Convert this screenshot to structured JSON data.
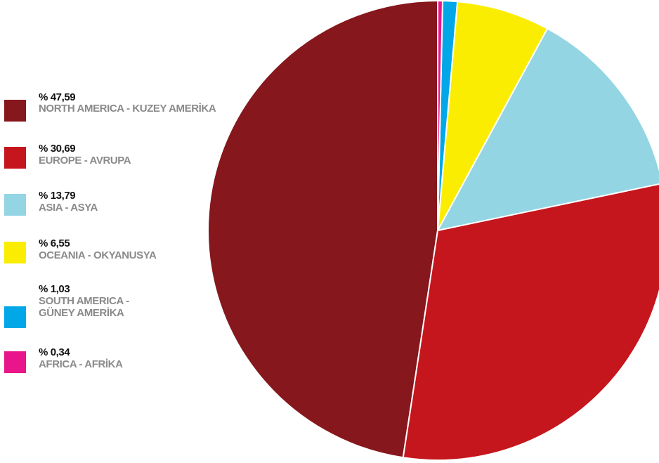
{
  "chart_data": {
    "type": "pie",
    "title": "",
    "slices": [
      {
        "label_line1": "NORTH AMERICA - KUZEY AMERİKA",
        "label_line2": "",
        "value": 47.59,
        "value_text": "% 47,59",
        "color": "#86171c"
      },
      {
        "label_line1": "EUROPE - AVRUPA",
        "label_line2": "",
        "value": 30.69,
        "value_text": "% 30,69",
        "color": "#c5161e"
      },
      {
        "label_line1": "ASIA - ASYA",
        "label_line2": "",
        "value": 13.79,
        "value_text": "% 13,79",
        "color": "#93d5e2"
      },
      {
        "label_line1": "OCEANIA - OKYANUSYA",
        "label_line2": "",
        "value": 6.55,
        "value_text": "% 6,55",
        "color": "#fbed02"
      },
      {
        "label_line1": "SOUTH AMERICA -",
        "label_line2": "GÜNEY AMERİKA",
        "value": 1.03,
        "value_text": "% 1,03",
        "color": "#01a7e7"
      },
      {
        "label_line1": "AFRICA - AFRİKA",
        "label_line2": "",
        "value": 0.34,
        "value_text": "% 0,34",
        "color": "#e8158b"
      }
    ],
    "legend_position": "left",
    "start_angle": "top",
    "direction": "counter-clockwise"
  }
}
